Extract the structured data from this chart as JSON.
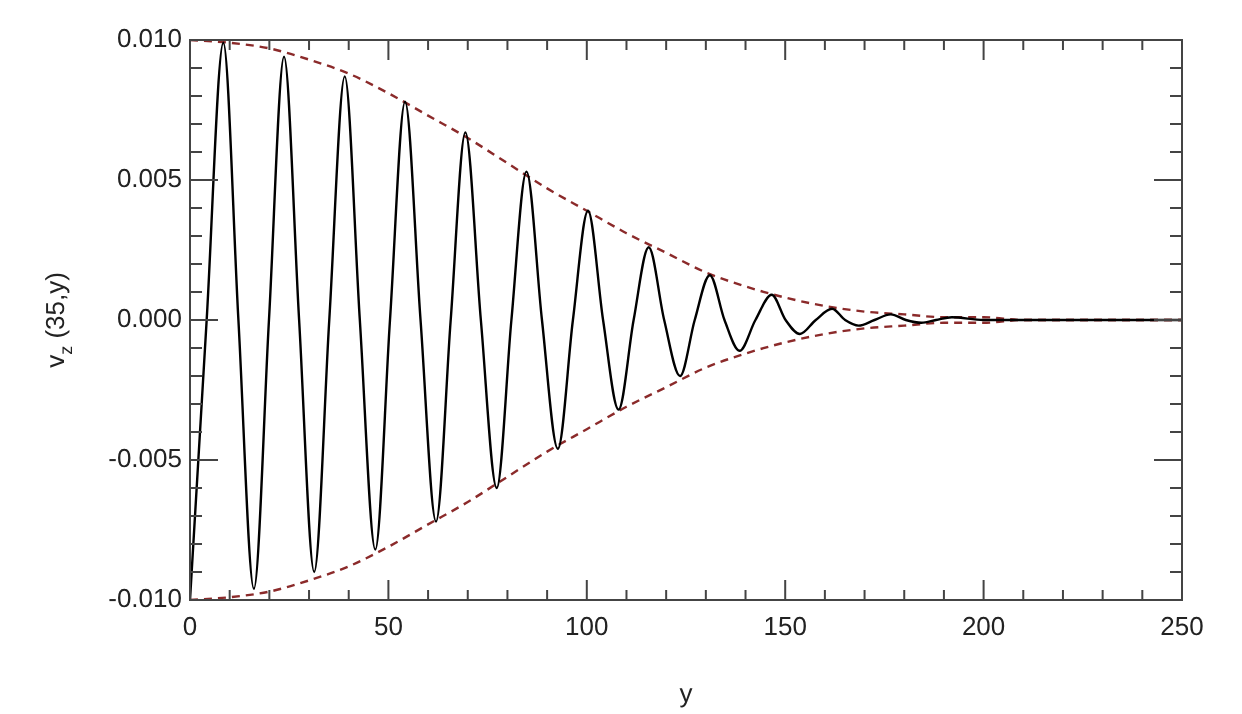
{
  "chart_data": {
    "type": "line",
    "xlabel": "y",
    "ylabel": "v$_{z}$ (35,y)",
    "xlim": [
      0,
      250
    ],
    "ylim": [
      -0.01,
      0.01
    ],
    "xticks": [
      0,
      {
        "value": 10,
        "label": null
      },
      {
        "value": 20,
        "label": null
      },
      {
        "value": 30,
        "label": null
      },
      {
        "value": 40,
        "label": null
      },
      50,
      {
        "value": 60,
        "label": null
      },
      {
        "value": 70,
        "label": null
      },
      {
        "value": 80,
        "label": null
      },
      {
        "value": 90,
        "label": null
      },
      100,
      {
        "value": 110,
        "label": null
      },
      {
        "value": 120,
        "label": null
      },
      {
        "value": 130,
        "label": null
      },
      {
        "value": 140,
        "label": null
      },
      150,
      {
        "value": 160,
        "label": null
      },
      {
        "value": 170,
        "label": null
      },
      {
        "value": 180,
        "label": null
      },
      {
        "value": 190,
        "label": null
      },
      200,
      {
        "value": 210,
        "label": null
      },
      {
        "value": 220,
        "label": null
      },
      {
        "value": 230,
        "label": null
      },
      {
        "value": 240,
        "label": null
      },
      250
    ],
    "yticks": [
      {
        "value": -0.01,
        "label": "-0.010"
      },
      {
        "value": -0.009,
        "label": null
      },
      {
        "value": -0.008,
        "label": null
      },
      {
        "value": -0.007,
        "label": null
      },
      {
        "value": -0.006,
        "label": null
      },
      {
        "value": -0.005,
        "label": "-0.005"
      },
      {
        "value": -0.004,
        "label": null
      },
      {
        "value": -0.003,
        "label": null
      },
      {
        "value": -0.002,
        "label": null
      },
      {
        "value": -0.001,
        "label": null
      },
      {
        "value": 0,
        "label": "0.000"
      },
      {
        "value": 0.001,
        "label": null
      },
      {
        "value": 0.002,
        "label": null
      },
      {
        "value": 0.003,
        "label": null
      },
      {
        "value": 0.004,
        "label": null
      },
      {
        "value": 0.005,
        "label": "0.005"
      },
      {
        "value": 0.006,
        "label": null
      },
      {
        "value": 0.007,
        "label": null
      },
      {
        "value": 0.008,
        "label": null
      },
      {
        "value": 0.009,
        "label": null
      },
      {
        "value": 0.01,
        "label": "0.010"
      }
    ],
    "grid": false,
    "legend": false,
    "marker": "none",
    "series": [
      {
        "color": "#000000",
        "line_style": "solid",
        "x": [
          0,
          4.2,
          8.4,
          12.2,
          16.1,
          19.9,
          23.7,
          27.5,
          31.3,
          35.1,
          39,
          42.8,
          46.7,
          50.4,
          54.2,
          58.1,
          62,
          65.7,
          69.4,
          73.3,
          77.3,
          81,
          84.8,
          88.7,
          92.7,
          96.5,
          100.3,
          104.1,
          108,
          111.8,
          115.6,
          119.5,
          123.5,
          127.2,
          131,
          134.7,
          138.5,
          142.5,
          146.6,
          150.1,
          153.7,
          157.7,
          161.8,
          165.1,
          168.5,
          172.5,
          176.6,
          180.4,
          184.3,
          188,
          192,
          200,
          250
        ],
        "values": [
          -0.01,
          0,
          0.0099,
          0,
          -0.0096,
          0,
          0.0094,
          0,
          -0.009,
          0,
          0.0087,
          0,
          -0.0082,
          0,
          0.0078,
          0,
          -0.0072,
          0,
          0.0067,
          0,
          -0.006,
          0,
          0.0053,
          0,
          -0.0046,
          0,
          0.0039,
          0,
          -0.0032,
          0,
          0.0026,
          0,
          -0.002,
          0,
          0.0016,
          0,
          -0.0011,
          0,
          0.0009,
          0,
          -0.0005,
          0,
          0.0004,
          0,
          -0.0002,
          0,
          0.0002,
          0,
          -0.0001,
          0,
          0.0001,
          0,
          0
        ]
      },
      {
        "color": "#8b2a2a",
        "line_style": "dashed",
        "x": [
          0,
          10,
          20,
          30,
          40,
          50,
          60,
          70,
          80,
          90,
          100,
          110,
          120,
          130,
          140,
          150,
          160,
          170,
          180,
          190,
          200,
          210,
          250
        ],
        "values": [
          0.01,
          0.0099,
          0.0097,
          0.0093,
          0.0088,
          0.0081,
          0.0073,
          0.0065,
          0.0056,
          0.0047,
          0.0039,
          0.0031,
          0.0024,
          0.0017,
          0.0012,
          0.0008,
          0.0005,
          0.0003,
          0.0002,
          0.0001,
          0.0001,
          0,
          0
        ]
      },
      {
        "color": "#8b2a2a",
        "line_style": "dashed",
        "x": [
          0,
          10,
          20,
          30,
          40,
          50,
          60,
          70,
          80,
          90,
          100,
          110,
          120,
          130,
          140,
          150,
          160,
          170,
          180,
          190,
          200,
          210,
          250
        ],
        "values": [
          -0.01,
          -0.0099,
          -0.0097,
          -0.0093,
          -0.0088,
          -0.0081,
          -0.0073,
          -0.0065,
          -0.0056,
          -0.0047,
          -0.0039,
          -0.0031,
          -0.0024,
          -0.0017,
          -0.0012,
          -0.0008,
          -0.0005,
          -0.0003,
          -0.0002,
          -0.0001,
          -0.0001,
          0,
          0
        ]
      }
    ]
  }
}
